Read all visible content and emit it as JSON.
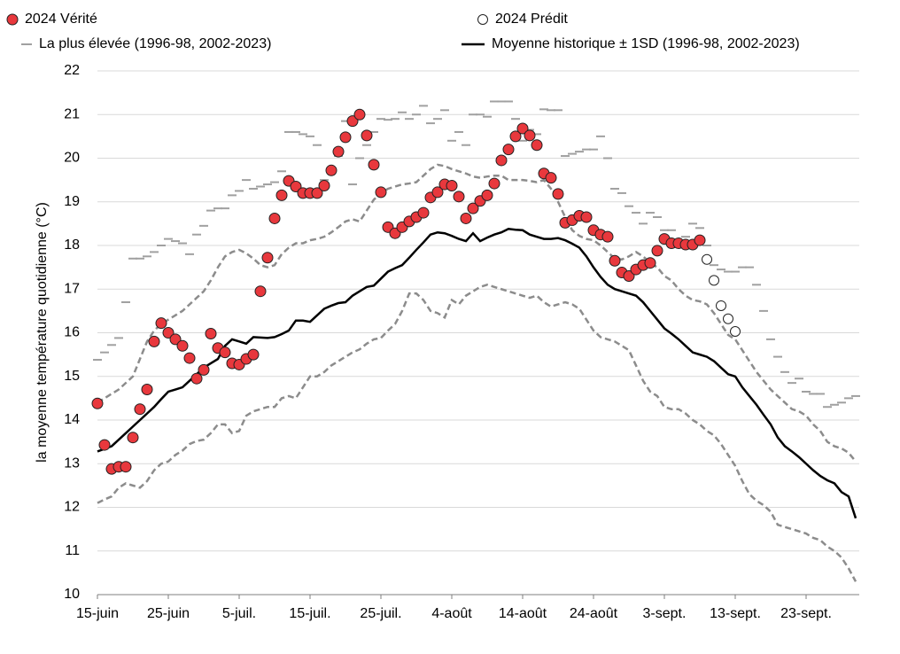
{
  "chart_data": {
    "type": "line",
    "y_label": "la moyenne température quotidienne (°C)",
    "ylim": [
      10,
      22
    ],
    "yticks": [
      10,
      11,
      12,
      13,
      14,
      15,
      16,
      17,
      18,
      19,
      20,
      21,
      22
    ],
    "grid": true,
    "legend": "top",
    "categories": [
      "15-juin",
      null,
      null,
      null,
      null,
      null,
      null,
      null,
      null,
      null,
      "25-juin",
      null,
      null,
      null,
      null,
      null,
      null,
      null,
      null,
      null,
      "5-juil.",
      null,
      null,
      null,
      null,
      null,
      null,
      null,
      null,
      null,
      "15-juil.",
      null,
      null,
      null,
      null,
      null,
      null,
      null,
      null,
      null,
      "25-juil.",
      null,
      null,
      null,
      null,
      null,
      null,
      null,
      null,
      null,
      "4-août",
      null,
      null,
      null,
      null,
      null,
      null,
      null,
      null,
      null,
      "14-août",
      null,
      null,
      null,
      null,
      null,
      null,
      null,
      null,
      null,
      "24-août",
      null,
      null,
      null,
      null,
      null,
      null,
      null,
      null,
      null,
      "3-sept.",
      null,
      null,
      null,
      null,
      null,
      null,
      null,
      null,
      null,
      "13-sept.",
      null,
      null,
      null,
      null,
      null,
      null,
      null,
      null,
      null,
      "23-sept.",
      null,
      null,
      null,
      null,
      null,
      null,
      null
    ],
    "series": [
      {
        "name": "2024 Vérité",
        "color": "#e8383d",
        "marker": "dot",
        "values": [
          14.38,
          13.43,
          12.88,
          12.93,
          12.93,
          13.6,
          14.25,
          14.7,
          15.8,
          16.22,
          16.0,
          15.85,
          15.7,
          15.42,
          14.95,
          15.15,
          15.98,
          15.65,
          15.55,
          15.3,
          15.27,
          15.4,
          15.5,
          16.95,
          17.72,
          18.62,
          19.15,
          19.48,
          19.35,
          19.2,
          19.2,
          19.2,
          19.37,
          19.72,
          20.15,
          20.48,
          20.85,
          21.0,
          20.52,
          19.85,
          19.22,
          18.42,
          18.28,
          18.42,
          18.55,
          18.65,
          18.75,
          19.1,
          19.22,
          19.4,
          19.37,
          19.12,
          18.62,
          18.85,
          19.02,
          19.15,
          19.42,
          19.95,
          20.2,
          20.5,
          20.68,
          20.52,
          20.3,
          19.65,
          19.55,
          19.18,
          18.52,
          18.58,
          18.68,
          18.65,
          18.35,
          18.25,
          18.2,
          17.65,
          17.38,
          17.3,
          17.45,
          17.55,
          17.6,
          17.88,
          18.15,
          18.05,
          18.05,
          18.02,
          18.02,
          18.12,
          null,
          null,
          null,
          null,
          null,
          null,
          null,
          null,
          null,
          null,
          null,
          null,
          null,
          null,
          null,
          null,
          null,
          null,
          null,
          null,
          null,
          null
        ]
      },
      {
        "name": "2024 Prédit",
        "color": "#ffffff",
        "marker": "open-dot",
        "values": [
          null,
          null,
          null,
          null,
          null,
          null,
          null,
          null,
          null,
          null,
          null,
          null,
          null,
          null,
          null,
          null,
          null,
          null,
          null,
          null,
          null,
          null,
          null,
          null,
          null,
          null,
          null,
          null,
          null,
          null,
          null,
          null,
          null,
          null,
          null,
          null,
          null,
          null,
          null,
          null,
          null,
          null,
          null,
          null,
          null,
          null,
          null,
          null,
          null,
          null,
          null,
          null,
          null,
          null,
          null,
          null,
          null,
          null,
          null,
          null,
          null,
          null,
          null,
          null,
          null,
          null,
          null,
          null,
          null,
          null,
          null,
          null,
          null,
          null,
          null,
          null,
          null,
          null,
          null,
          null,
          null,
          null,
          null,
          null,
          null,
          null,
          17.68,
          17.2,
          16.62,
          16.32,
          16.03,
          null,
          null,
          null,
          null,
          null,
          null,
          null,
          null,
          null,
          null,
          null,
          null,
          null,
          null,
          null,
          null,
          null
        ]
      },
      {
        "name": "La plus élevée (1996-98, 2002-2023)",
        "color": "#a0a0a0",
        "marker": "dash",
        "values": [
          15.38,
          15.55,
          15.72,
          15.88,
          16.7,
          17.7,
          17.7,
          17.75,
          17.85,
          18.0,
          18.15,
          18.1,
          18.05,
          17.8,
          18.25,
          18.45,
          18.8,
          18.85,
          18.85,
          19.15,
          19.25,
          19.5,
          19.3,
          19.35,
          19.4,
          19.45,
          19.7,
          20.6,
          20.6,
          20.55,
          20.5,
          20.3,
          19.5,
          19.7,
          20.05,
          20.85,
          19.4,
          20.0,
          20.3,
          20.6,
          20.9,
          20.88,
          20.9,
          21.05,
          20.9,
          21.0,
          21.2,
          20.8,
          20.9,
          21.1,
          20.4,
          20.6,
          20.3,
          21.0,
          21.0,
          20.95,
          21.3,
          21.3,
          21.3,
          20.9,
          20.4,
          20.65,
          20.55,
          21.12,
          21.1,
          21.1,
          20.05,
          20.1,
          20.15,
          20.2,
          20.2,
          20.5,
          20.0,
          19.3,
          19.2,
          18.9,
          18.75,
          18.5,
          18.75,
          18.65,
          18.35,
          18.35,
          18.05,
          18.2,
          18.5,
          18.4,
          18.0,
          17.55,
          17.45,
          17.4,
          17.4,
          17.5,
          17.5,
          17.1,
          16.5,
          15.85,
          15.45,
          15.1,
          14.85,
          14.95,
          14.65,
          14.6,
          14.6,
          14.3,
          14.35,
          14.4,
          14.5,
          14.55
        ]
      },
      {
        "name": "Moyenne historique ± 1SD (1996-98, 2002-2023)",
        "color": "#000000",
        "sd_color": "#8c8c8c",
        "marker": "line",
        "values": [
          13.28,
          13.34,
          13.4,
          13.55,
          13.7,
          13.85,
          14.0,
          14.15,
          14.3,
          14.48,
          14.65,
          14.7,
          14.75,
          14.9,
          15.05,
          15.2,
          15.3,
          15.4,
          15.7,
          15.85,
          15.8,
          15.75,
          15.9,
          15.89,
          15.88,
          15.9,
          15.97,
          16.05,
          16.28,
          16.28,
          16.25,
          16.4,
          16.55,
          16.62,
          16.68,
          16.7,
          16.85,
          16.95,
          17.05,
          17.08,
          17.24,
          17.4,
          17.48,
          17.55,
          17.72,
          17.9,
          18.07,
          18.25,
          18.3,
          18.28,
          18.22,
          18.15,
          18.1,
          18.28,
          18.1,
          18.18,
          18.25,
          18.3,
          18.38,
          18.36,
          18.35,
          18.25,
          18.2,
          18.15,
          18.15,
          18.17,
          18.12,
          18.04,
          17.95,
          17.75,
          17.5,
          17.28,
          17.1,
          17.0,
          16.95,
          16.9,
          16.85,
          16.7,
          16.5,
          16.3,
          16.1,
          15.98,
          15.85,
          15.7,
          15.55,
          15.5,
          15.45,
          15.35,
          15.2,
          15.05,
          15.0,
          14.75,
          14.55,
          14.35,
          14.12,
          13.9,
          13.6,
          13.4,
          13.28,
          13.15,
          13.0,
          12.85,
          12.72,
          12.62,
          12.55,
          12.35,
          12.25,
          11.75
        ],
        "upper": [
          14.4,
          14.5,
          14.6,
          14.7,
          14.85,
          15.0,
          15.4,
          15.8,
          16.05,
          16.2,
          16.3,
          16.4,
          16.5,
          16.65,
          16.8,
          16.95,
          17.2,
          17.5,
          17.75,
          17.85,
          17.9,
          17.82,
          17.7,
          17.55,
          17.5,
          17.55,
          17.8,
          17.95,
          18.05,
          18.05,
          18.12,
          18.15,
          18.2,
          18.3,
          18.42,
          18.55,
          18.6,
          18.55,
          18.8,
          19.05,
          19.2,
          19.3,
          19.35,
          19.4,
          19.42,
          19.45,
          19.6,
          19.75,
          19.85,
          19.82,
          19.75,
          19.7,
          19.65,
          19.58,
          19.55,
          19.58,
          19.6,
          19.6,
          19.5,
          19.5,
          19.5,
          19.48,
          19.45,
          19.5,
          19.3,
          19.0,
          18.65,
          18.35,
          18.22,
          18.15,
          18.12,
          18.0,
          17.85,
          17.7,
          17.68,
          17.75,
          17.85,
          17.75,
          17.6,
          17.5,
          17.3,
          17.2,
          17.0,
          16.85,
          16.75,
          16.72,
          16.65,
          16.45,
          16.2,
          15.95,
          15.85,
          15.6,
          15.35,
          15.1,
          14.9,
          14.7,
          14.55,
          14.4,
          14.25,
          14.2,
          14.1,
          13.9,
          13.75,
          13.5,
          13.4,
          13.35,
          13.25,
          13.05
        ],
        "lower": [
          12.1,
          12.18,
          12.25,
          12.45,
          12.55,
          12.5,
          12.45,
          12.6,
          12.85,
          13.0,
          13.05,
          13.2,
          13.3,
          13.45,
          13.52,
          13.55,
          13.7,
          13.9,
          13.9,
          13.7,
          13.75,
          14.1,
          14.2,
          14.25,
          14.3,
          14.3,
          14.5,
          14.55,
          14.5,
          14.75,
          15.0,
          15.0,
          15.1,
          15.25,
          15.35,
          15.45,
          15.55,
          15.62,
          15.75,
          15.85,
          15.88,
          16.05,
          16.2,
          16.5,
          16.9,
          16.9,
          16.75,
          16.5,
          16.45,
          16.35,
          16.75,
          16.65,
          16.85,
          16.95,
          17.05,
          17.1,
          17.05,
          17.0,
          16.95,
          16.9,
          16.85,
          16.8,
          16.85,
          16.7,
          16.6,
          16.65,
          16.7,
          16.65,
          16.55,
          16.3,
          16.05,
          15.9,
          15.85,
          15.8,
          15.7,
          15.6,
          15.25,
          14.9,
          14.65,
          14.55,
          14.3,
          14.25,
          14.25,
          14.15,
          14.0,
          13.9,
          13.75,
          13.65,
          13.45,
          13.2,
          12.95,
          12.6,
          12.3,
          12.15,
          12.05,
          11.9,
          11.6,
          11.55,
          11.5,
          11.45,
          11.4,
          11.3,
          11.25,
          11.1,
          11.0,
          10.85,
          10.6,
          10.3
        ]
      }
    ]
  }
}
